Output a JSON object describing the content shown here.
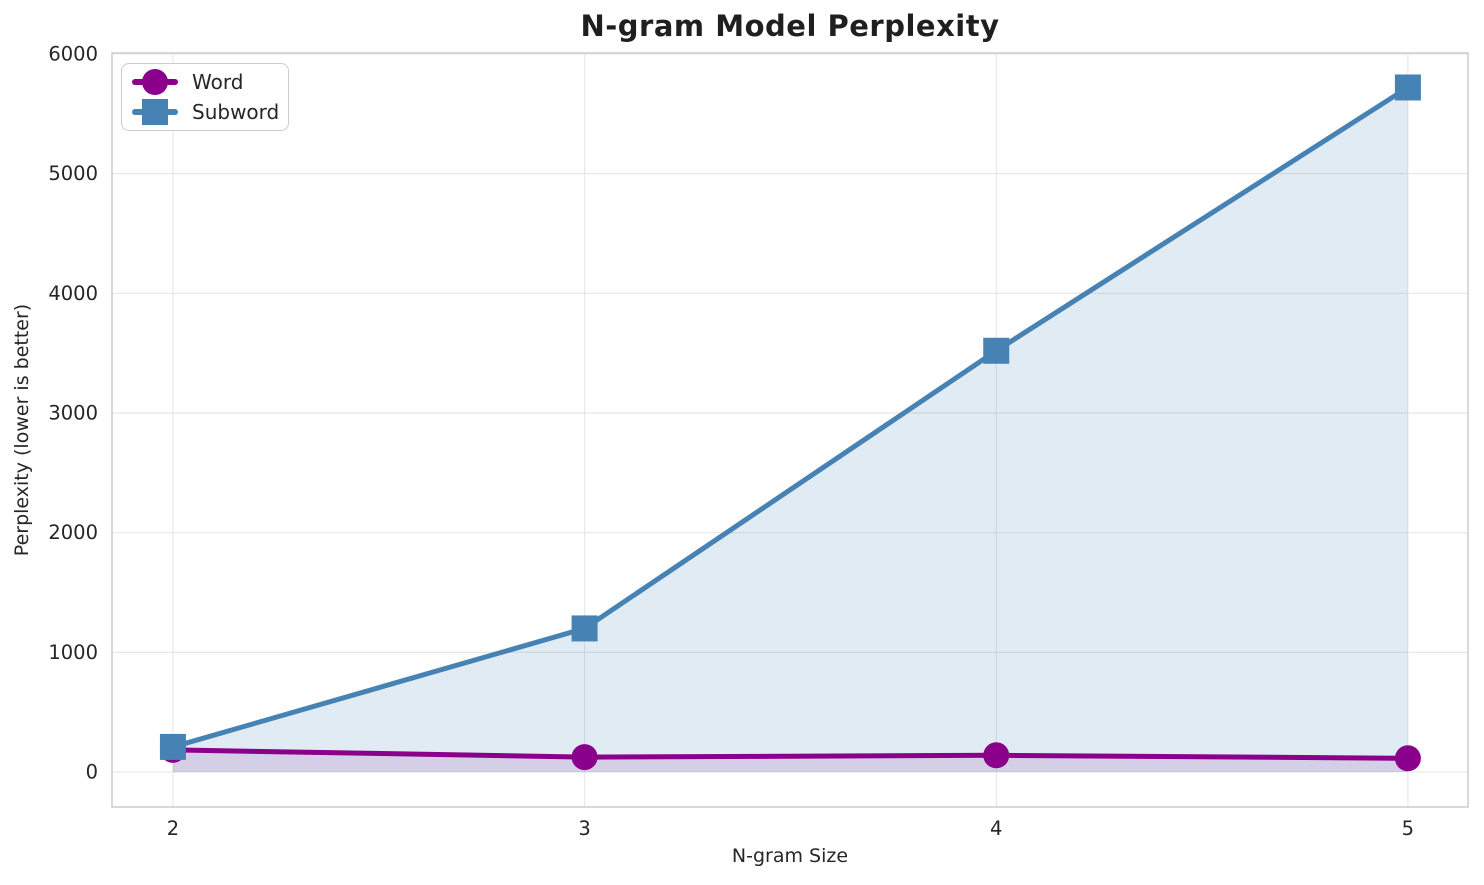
{
  "chart_data": {
    "type": "line",
    "title": "N-gram Model Perplexity",
    "xlabel": "N-gram Size",
    "ylabel": "Perplexity (lower is better)",
    "x": [
      2,
      3,
      4,
      5
    ],
    "series": [
      {
        "name": "Word",
        "marker": "circle",
        "color": "#8B008B",
        "fill": "rgba(139,0,139,0.13)",
        "values": [
          185,
          125,
          140,
          115
        ]
      },
      {
        "name": "Subword",
        "marker": "square",
        "color": "#4682B4",
        "fill": "rgba(70,130,180,0.16)",
        "values": [
          210,
          1200,
          3520,
          5720
        ]
      }
    ],
    "xticks": [
      2,
      3,
      4,
      5
    ],
    "yticks": [
      0,
      1000,
      2000,
      3000,
      4000,
      5000,
      6000
    ],
    "xlim": [
      1.852,
      5.146
    ],
    "ylim": [
      -292,
      6008
    ],
    "fill_baseline": 0,
    "grid": true,
    "legend_position": "upper-left",
    "style": {
      "grid_color": "#e8e8e8",
      "spine_color": "#cccccc",
      "text_color": "#262626",
      "background": "#ffffff"
    }
  }
}
